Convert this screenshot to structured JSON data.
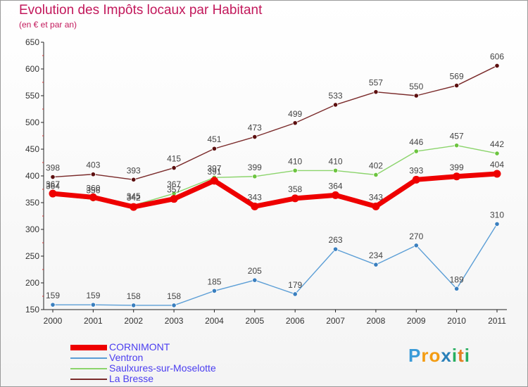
{
  "chart_data": {
    "type": "line",
    "title": "Evolution des Impôts locaux par Habitant",
    "subtitle": "(en € et par an)",
    "x": [
      "2000",
      "2001",
      "2002",
      "2003",
      "2004",
      "2005",
      "2006",
      "2007",
      "2008",
      "2009",
      "2010",
      "2011"
    ],
    "ylim": [
      150,
      650
    ],
    "yticks": [
      150,
      200,
      250,
      300,
      350,
      400,
      450,
      500,
      550,
      600,
      650
    ],
    "grid": false,
    "series": [
      {
        "name": "La Bresse",
        "color": "#7a2a2a",
        "marker": "#5c0f0f",
        "values": [
          398,
          403,
          393,
          415,
          451,
          473,
          499,
          533,
          557,
          550,
          569,
          606
        ]
      },
      {
        "name": "Saulxures-sur-Moselotte",
        "color": "#8bd46b",
        "marker": "#6cc43f",
        "values": [
          364,
          356,
          345,
          367,
          397,
          399,
          410,
          410,
          402,
          446,
          457,
          442
        ]
      },
      {
        "name": "Ventron",
        "color": "#5b9ed6",
        "marker": "#3a7fbf",
        "values": [
          159,
          159,
          158,
          158,
          185,
          205,
          179,
          263,
          234,
          270,
          189,
          310
        ]
      },
      {
        "name": "CORNIMONT",
        "color": "#ee0000",
        "marker": "#ee0000",
        "values": [
          367,
          360,
          342,
          357,
          391,
          343,
          358,
          364,
          343,
          393,
          399,
          404
        ]
      }
    ],
    "legend_order": [
      "CORNIMONT",
      "Ventron",
      "Saulxures-sur-Moselotte",
      "La Bresse"
    ]
  },
  "logo": {
    "letters": [
      "P",
      "r",
      "o",
      "x",
      "i",
      "t",
      "i"
    ],
    "colors": [
      "#3a9bd8",
      "#f39c12",
      "#f39c12",
      "#2980b9",
      "#27ae60",
      "#e67e22",
      "#27ae60"
    ]
  }
}
